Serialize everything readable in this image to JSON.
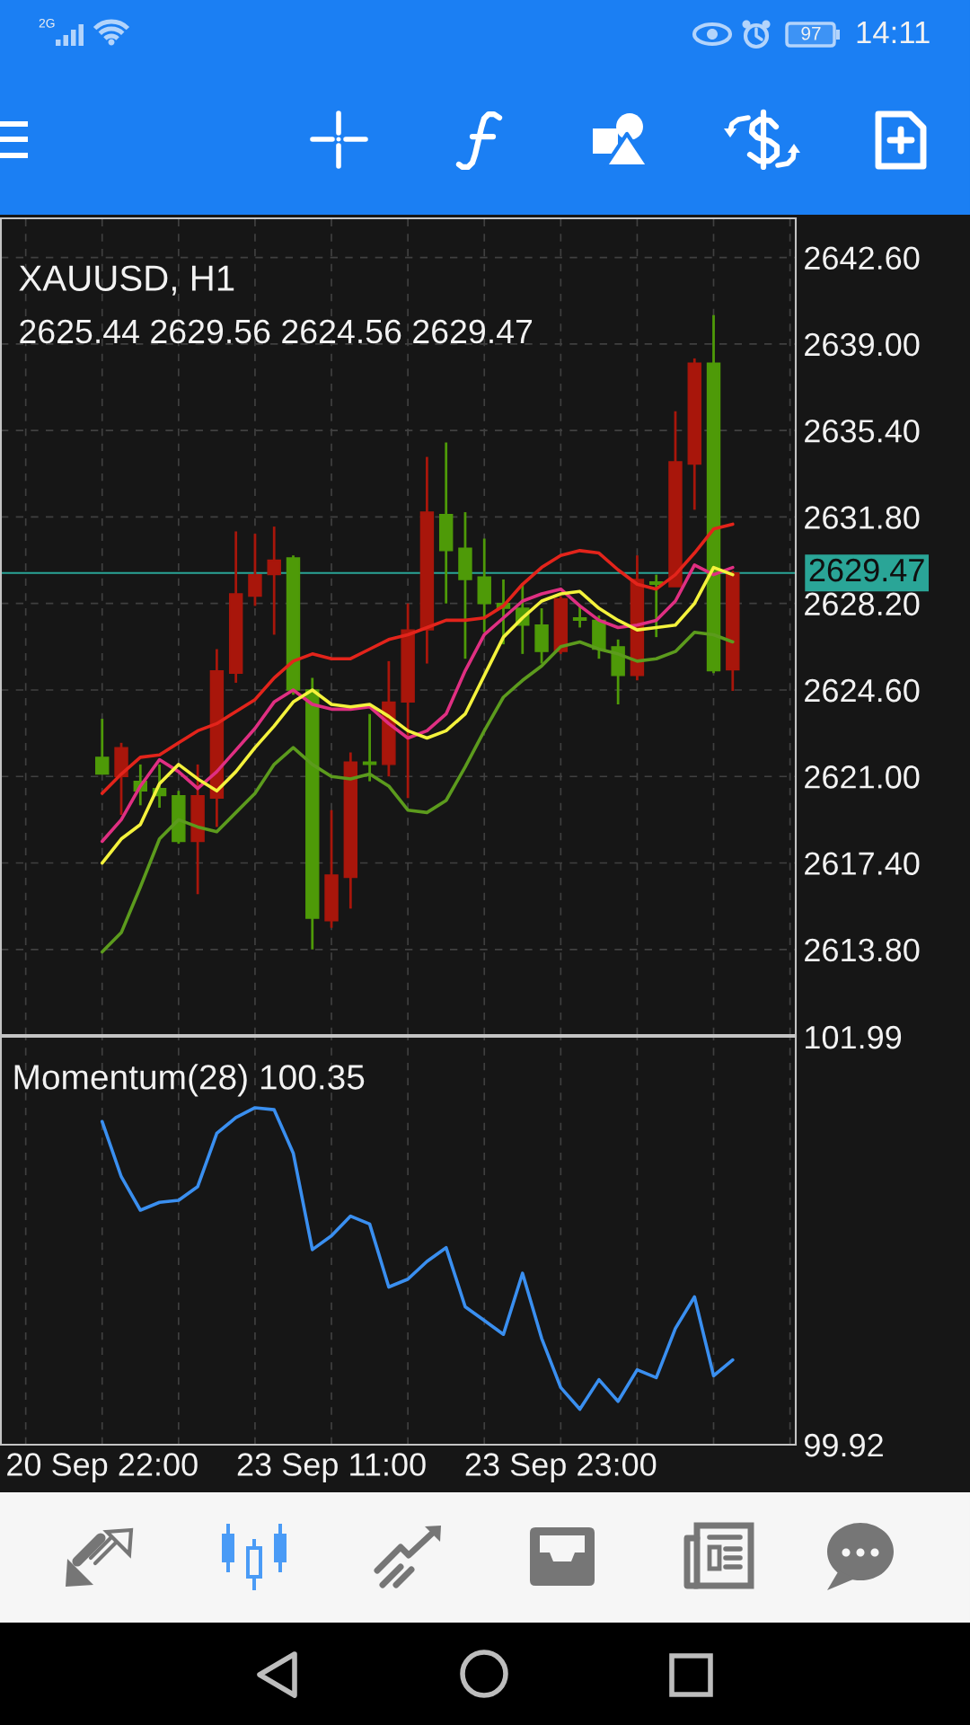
{
  "chart_data": [
    {
      "type": "candlestick",
      "title": "XAUUSD, H1",
      "subtitle": "2625.44 2629.56 2624.56 2629.47",
      "categories": [
        null,
        null,
        null,
        null,
        null,
        null,
        null,
        null,
        null,
        null,
        null,
        null,
        null,
        null,
        null,
        null,
        null,
        null,
        null,
        null,
        null,
        null,
        null,
        null,
        null,
        null,
        null,
        null,
        null,
        null,
        null,
        null,
        null,
        null
      ],
      "ohlc": [
        [
          2621.8,
          2623.4,
          2621.1,
          2621.1
        ],
        [
          2621.0,
          2622.4,
          2619.4,
          2622.2
        ],
        [
          2620.8,
          2621.5,
          2619.8,
          2620.4
        ],
        [
          2620.5,
          2621.5,
          2619.7,
          2620.2
        ],
        [
          2620.2,
          2620.4,
          2618.2,
          2618.3
        ],
        [
          2618.3,
          2621.5,
          2616.1,
          2620.2
        ],
        [
          2620.1,
          2626.3,
          2618.9,
          2625.4
        ],
        [
          2625.3,
          2631.2,
          2624.9,
          2628.6
        ],
        [
          2628.5,
          2631.1,
          2628.1,
          2629.4
        ],
        [
          2629.4,
          2631.4,
          2626.9,
          2630.0
        ],
        [
          2630.1,
          2630.2,
          2624.4,
          2624.6
        ],
        [
          2624.6,
          2625.1,
          2613.8,
          2615.1
        ],
        [
          2615.0,
          2619.6,
          2614.7,
          2616.9
        ],
        [
          2616.8,
          2622.0,
          2615.5,
          2621.6
        ],
        [
          2621.6,
          2623.6,
          2620.8,
          2621.5
        ],
        [
          2621.5,
          2625.8,
          2621.0,
          2624.1
        ],
        [
          2624.1,
          2628.2,
          2620.1,
          2627.1
        ],
        [
          2627.1,
          2634.3,
          2625.7,
          2632.0
        ],
        [
          2631.9,
          2634.9,
          2628.2,
          2630.4
        ],
        [
          2630.5,
          2632.0,
          2625.9,
          2629.2
        ],
        [
          2629.3,
          2630.9,
          2627.0,
          2628.2
        ],
        [
          2628.2,
          2629.2,
          2626.5,
          2628.0
        ],
        [
          2628.0,
          2629.0,
          2626.1,
          2627.3
        ],
        [
          2627.3,
          2628.0,
          2625.7,
          2626.2
        ],
        [
          2626.2,
          2628.5,
          2626.1,
          2628.4
        ],
        [
          2627.6,
          2628.1,
          2627.2,
          2627.5
        ],
        [
          2627.5,
          2627.7,
          2625.9,
          2626.3
        ],
        [
          2626.4,
          2626.7,
          2624.0,
          2625.2
        ],
        [
          2625.2,
          2630.2,
          2625.0,
          2629.2
        ],
        [
          2629.1,
          2629.4,
          2626.8,
          2629.0
        ],
        [
          2628.9,
          2636.2,
          2628.9,
          2634.1
        ],
        [
          2634.0,
          2638.4,
          2632.1,
          2638.2
        ],
        [
          2638.2,
          2640.2,
          2625.3,
          2625.4
        ],
        [
          2625.44,
          2629.56,
          2624.56,
          2629.47
        ]
      ],
      "colors": [
        "#4e9a08",
        "#a8160b",
        "#4e9a08",
        "#4e9a08",
        "#4e9a08",
        "#a8160b",
        "#a8160b",
        "#a8160b",
        "#a8160b",
        "#a8160b",
        "#4e9a08",
        "#4e9a08",
        "#a8160b",
        "#a8160b",
        "#4e9a08",
        "#a8160b",
        "#a8160b",
        "#a8160b",
        "#4e9a08",
        "#4e9a08",
        "#4e9a08",
        "#4e9a08",
        "#4e9a08",
        "#4e9a08",
        "#a8160b",
        "#4e9a08",
        "#4e9a08",
        "#4e9a08",
        "#a8160b",
        "#4e9a08",
        "#a8160b",
        "#a8160b",
        "#4e9a08",
        "#a8160b"
      ],
      "series": [
        {
          "type": "line",
          "color": "#e3241b",
          "values": [
            2620.3,
            2621.1,
            2621.8,
            2621.9,
            2622.4,
            2622.9,
            2623.2,
            2623.7,
            2624.2,
            2625.1,
            2625.8,
            2626.1,
            2625.9,
            2625.9,
            2626.3,
            2626.7,
            2626.9,
            2627.2,
            2627.5,
            2627.5,
            2627.6,
            2628.1,
            2629.0,
            2629.7,
            2630.2,
            2630.4,
            2630.3,
            2629.6,
            2629.0,
            2628.8,
            2629.4,
            2630.3,
            2631.3,
            2631.5
          ]
        },
        {
          "type": "line",
          "color": "#e02f82",
          "values": [
            2618.3,
            2619.2,
            2620.6,
            2621.7,
            2621.2,
            2620.5,
            2621.2,
            2622.1,
            2623.0,
            2624.1,
            2624.6,
            2624.0,
            2623.8,
            2623.8,
            2623.9,
            2623.2,
            2622.6,
            2622.9,
            2623.6,
            2625.4,
            2626.9,
            2627.6,
            2628.3,
            2628.6,
            2628.8,
            2628.1,
            2627.5,
            2627.2,
            2627.3,
            2627.5,
            2628.3,
            2629.8,
            2629.4,
            2629.7
          ]
        },
        {
          "type": "line",
          "color": "#f4f23c",
          "values": [
            2617.4,
            2618.4,
            2619.0,
            2620.7,
            2621.5,
            2620.9,
            2620.4,
            2621.2,
            2622.2,
            2623.1,
            2624.1,
            2624.6,
            2624.0,
            2623.9,
            2624.0,
            2623.5,
            2622.9,
            2622.6,
            2622.9,
            2623.6,
            2625.2,
            2626.8,
            2627.6,
            2628.3,
            2628.6,
            2628.7,
            2628.0,
            2627.5,
            2627.1,
            2627.2,
            2627.3,
            2628.2,
            2629.7,
            2629.4
          ]
        },
        {
          "type": "line",
          "color": "#5c9b1d",
          "values": [
            2613.7,
            2614.5,
            2616.4,
            2618.4,
            2619.2,
            2618.9,
            2618.7,
            2619.5,
            2620.3,
            2621.5,
            2622.2,
            2621.5,
            2621.0,
            2620.9,
            2621.1,
            2620.6,
            2619.6,
            2619.5,
            2620.0,
            2621.4,
            2622.9,
            2624.3,
            2625.0,
            2625.6,
            2626.4,
            2626.6,
            2626.3,
            2626.1,
            2625.8,
            2625.9,
            2626.2,
            2627.0,
            2626.9,
            2626.6
          ]
        }
      ],
      "ylim": [
        2610.24,
        2644.23
      ],
      "yticks": [
        {
          "value": 2613.8,
          "label": "2613.80"
        },
        {
          "value": 2617.4,
          "label": "2617.40"
        },
        {
          "value": 2621.0,
          "label": "2621.00"
        },
        {
          "value": 2624.6,
          "label": "2624.60"
        },
        {
          "value": 2628.2,
          "label": "2628.20"
        },
        {
          "value": 2631.8,
          "label": "2631.80"
        },
        {
          "value": 2635.4,
          "label": "2635.40"
        },
        {
          "value": 2639.0,
          "label": "2639.00"
        },
        {
          "value": 2642.6,
          "label": "2642.60"
        }
      ],
      "ref_lines": [
        {
          "axis": "y",
          "value": 2629.47,
          "label": "2629.47",
          "color": "#2aa597"
        }
      ],
      "grid": true,
      "tick_labels": "y",
      "annotations": [
        "2G",
        "97",
        "14:11"
      ]
    },
    {
      "type": "line",
      "title": "Momentum(28) 100.35",
      "categories": [
        "20 Sep 22:00",
        null,
        null,
        null,
        null,
        null,
        null,
        null,
        null,
        null,
        null,
        null,
        "23 Sep 11:00",
        null,
        null,
        null,
        null,
        null,
        null,
        null,
        null,
        null,
        null,
        null,
        "23 Sep 23:00",
        null,
        null,
        null,
        null,
        null,
        null,
        null,
        null,
        null
      ],
      "series": [
        {
          "color": "#3a8ff0",
          "values": [
            101.56,
            101.28,
            101.11,
            101.15,
            101.16,
            101.23,
            101.5,
            101.58,
            101.63,
            101.62,
            101.4,
            100.91,
            100.98,
            101.08,
            101.04,
            100.72,
            100.76,
            100.85,
            100.92,
            100.62,
            100.55,
            100.48,
            100.79,
            100.46,
            100.21,
            100.1,
            100.25,
            100.14,
            100.3,
            100.26,
            100.51,
            100.67,
            100.27,
            100.35
          ]
        }
      ],
      "ylim": [
        99.92,
        101.99
      ],
      "yticks": [
        99.92,
        101.99
      ],
      "grid": "x"
    }
  ]
}
